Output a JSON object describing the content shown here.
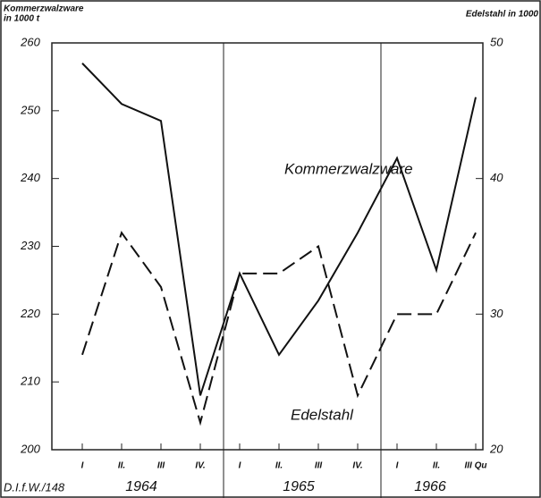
{
  "chart_data": {
    "type": "line",
    "y_label_lines": [
      "Kommerzwalzware",
      "in 1000 t"
    ],
    "y2_label": "Edelstahl in 1000",
    "categories": [
      "I",
      "II.",
      "III",
      "IV.",
      "I",
      "II.",
      "III",
      "IV.",
      "I",
      "II.",
      "III Qu"
    ],
    "groups": [
      {
        "name": "1964",
        "size": 4
      },
      {
        "name": "1965",
        "size": 4
      },
      {
        "name": "1966",
        "size": 3
      }
    ],
    "series": [
      {
        "name": "Kommerzwalzware",
        "color": "#111111",
        "dash": "solid",
        "values": [
          257,
          251,
          248.5,
          208,
          226,
          214,
          222,
          232,
          243,
          226.5,
          252
        ]
      },
      {
        "name": "Edelstahl",
        "color": "#111111",
        "dash": "dashed",
        "axis": "y2",
        "values": [
          27,
          36,
          32,
          22,
          33,
          33,
          35,
          24,
          30,
          30,
          36
        ]
      }
    ],
    "ylim": [
      200,
      260
    ],
    "yticks": [
      200,
      210,
      220,
      230,
      240,
      250,
      260
    ],
    "y2lim": [
      20,
      50
    ],
    "y2ticks": [
      20,
      30,
      40,
      50
    ],
    "source": "D.I.f.W./148"
  }
}
